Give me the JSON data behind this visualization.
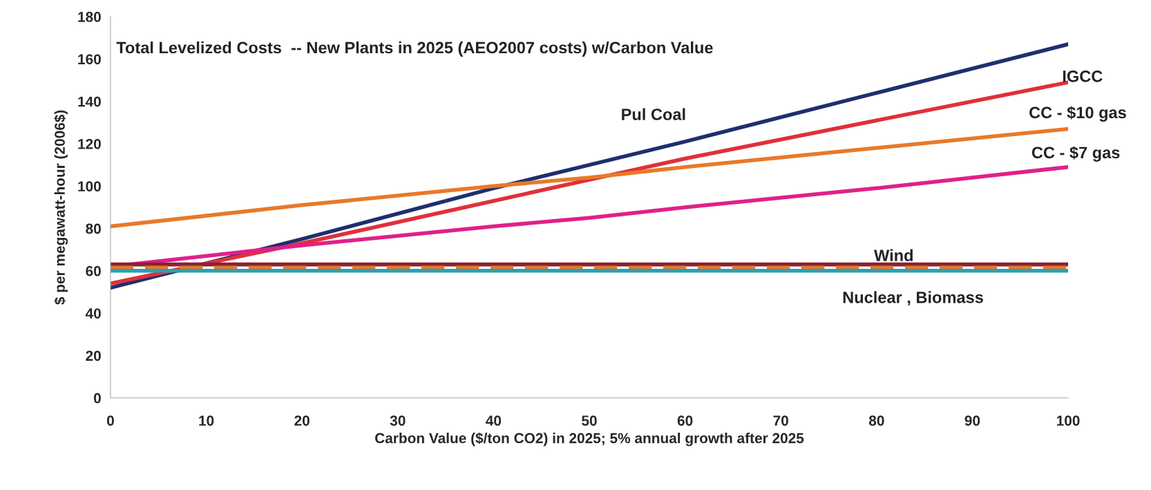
{
  "chart_data": {
    "type": "line",
    "title": "Total Levelized Costs  -- New Plants in 2025 (AEO2007 costs) w/Carbon Value",
    "xlabel": "Carbon Value ($/ton CO2) in 2025; 5% annual growth after 2025",
    "ylabel": "$ per megawatt-hour (2006$)",
    "x": [
      0,
      20,
      40,
      50,
      60,
      80,
      100
    ],
    "series": [
      {
        "color": "#1f2f6e",
        "values": [
          52,
          75,
          99,
          110,
          121,
          144,
          167
        ]
      },
      {
        "color": "#e0303a",
        "values": [
          54,
          73,
          93,
          103,
          113,
          131,
          149
        ]
      },
      {
        "color": "#e8792a",
        "values": [
          81,
          91,
          100,
          104,
          109,
          118,
          127
        ]
      },
      {
        "color": "#e0208a",
        "values": [
          62,
          72,
          81,
          85,
          90,
          99,
          109
        ]
      },
      {
        "color": "#8b2230",
        "values": [
          63,
          63,
          63,
          63,
          63,
          63,
          63
        ]
      },
      {
        "color": "#e07a30",
        "values": [
          61.5,
          61.5,
          61.5,
          61.5,
          61.5,
          61.5,
          61.5
        ],
        "line_style": "dashed"
      },
      {
        "color": "#2aa0b0",
        "values": [
          60,
          60,
          60,
          60,
          60,
          60,
          60
        ]
      }
    ],
    "annotations": [
      "Pul Coal",
      "IGCC",
      "CC - $10 gas",
      "CC - $7 gas",
      "Wind",
      "Nuclear , Biomass"
    ],
    "xlim": [
      0,
      100
    ],
    "ylim": [
      0,
      180
    ],
    "xticks": [
      0,
      10,
      20,
      30,
      40,
      50,
      60,
      70,
      80,
      90,
      100
    ],
    "yticks": [
      0,
      20,
      40,
      60,
      80,
      100,
      120,
      140,
      160,
      180
    ],
    "grid": false,
    "legend": false,
    "marker": "none",
    "line_style": "solid"
  }
}
